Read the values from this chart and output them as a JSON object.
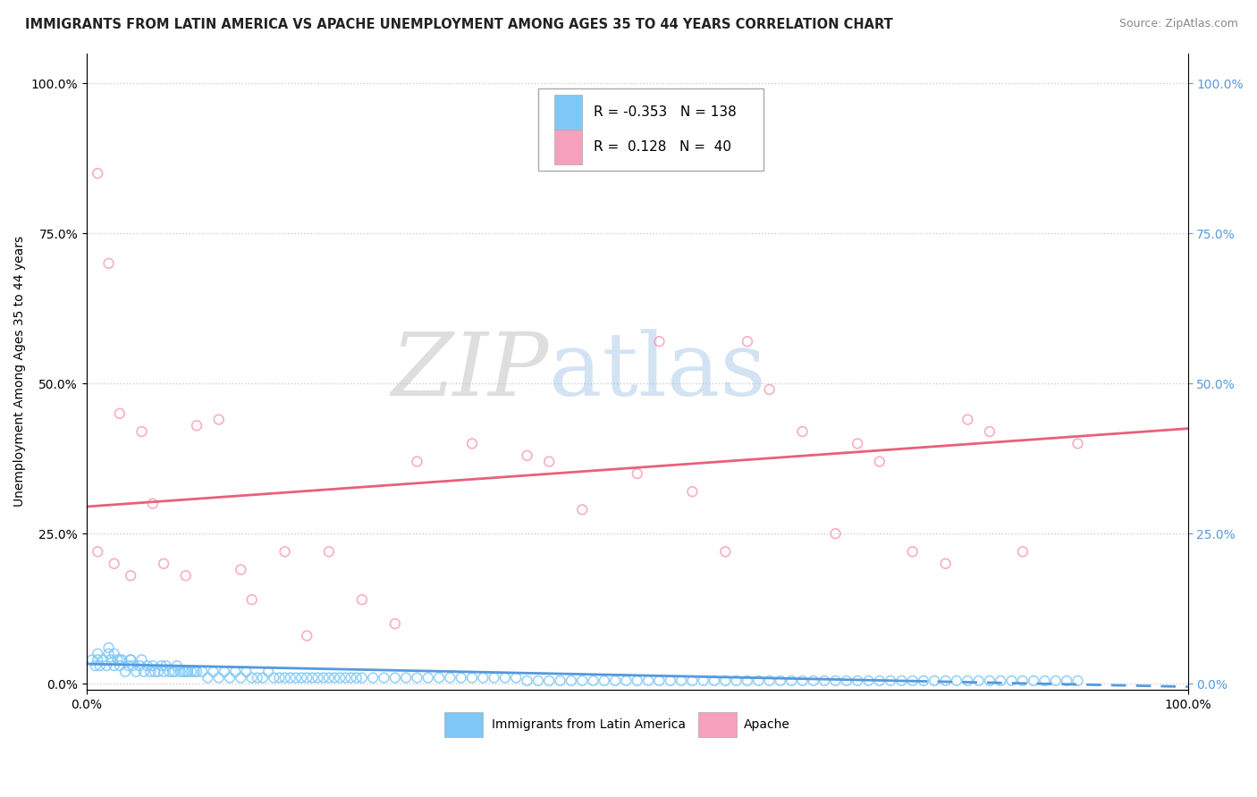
{
  "title": "IMMIGRANTS FROM LATIN AMERICA VS APACHE UNEMPLOYMENT AMONG AGES 35 TO 44 YEARS CORRELATION CHART",
  "source": "Source: ZipAtlas.com",
  "ylabel": "Unemployment Among Ages 35 to 44 years",
  "xlim": [
    0.0,
    1.0
  ],
  "ylim": [
    -0.01,
    1.05
  ],
  "ytick_values": [
    0.0,
    0.25,
    0.5,
    0.75,
    1.0
  ],
  "ytick_labels_left": [
    "0.0%",
    "25.0%",
    "50.0%",
    "75.0%",
    "100.0%"
  ],
  "ytick_labels_right": [
    "0.0%",
    "25.0%",
    "50.0%",
    "75.0%",
    "100.0%"
  ],
  "xtick_positions": [
    0.0,
    1.0
  ],
  "xtick_labels": [
    "0.0%",
    "100.0%"
  ],
  "watermark_zip": "ZIP",
  "watermark_atlas": "atlas",
  "legend_R1": "-0.353",
  "legend_N1": "138",
  "legend_R2": "0.128",
  "legend_N2": "40",
  "blue_color": "#7ec8f7",
  "pink_color": "#f5a0bc",
  "blue_line_color": "#5599dd",
  "pink_line_color": "#e8607a",
  "right_axis_color": "#5599dd",
  "blue_line_y0": 0.033,
  "blue_line_y1": -0.005,
  "pink_line_y0": 0.295,
  "pink_line_y1": 0.425,
  "blue_scatter_x": [
    0.005,
    0.008,
    0.01,
    0.012,
    0.015,
    0.018,
    0.02,
    0.022,
    0.025,
    0.028,
    0.03,
    0.032,
    0.035,
    0.038,
    0.04,
    0.042,
    0.045,
    0.048,
    0.05,
    0.052,
    0.055,
    0.058,
    0.06,
    0.062,
    0.065,
    0.068,
    0.07,
    0.072,
    0.075,
    0.078,
    0.08,
    0.082,
    0.085,
    0.088,
    0.09,
    0.092,
    0.095,
    0.098,
    0.1,
    0.105,
    0.11,
    0.115,
    0.12,
    0.125,
    0.13,
    0.135,
    0.14,
    0.145,
    0.15,
    0.155,
    0.16,
    0.165,
    0.17,
    0.175,
    0.18,
    0.185,
    0.19,
    0.195,
    0.2,
    0.205,
    0.21,
    0.215,
    0.22,
    0.225,
    0.23,
    0.235,
    0.24,
    0.245,
    0.25,
    0.26,
    0.27,
    0.28,
    0.29,
    0.3,
    0.31,
    0.32,
    0.33,
    0.34,
    0.35,
    0.36,
    0.37,
    0.38,
    0.39,
    0.4,
    0.41,
    0.42,
    0.43,
    0.44,
    0.45,
    0.46,
    0.47,
    0.48,
    0.49,
    0.5,
    0.51,
    0.52,
    0.53,
    0.54,
    0.55,
    0.56,
    0.57,
    0.58,
    0.59,
    0.6,
    0.61,
    0.62,
    0.63,
    0.64,
    0.65,
    0.66,
    0.67,
    0.68,
    0.69,
    0.7,
    0.71,
    0.72,
    0.73,
    0.74,
    0.75,
    0.76,
    0.77,
    0.78,
    0.79,
    0.8,
    0.81,
    0.82,
    0.83,
    0.84,
    0.85,
    0.86,
    0.87,
    0.88,
    0.89,
    0.9,
    0.01,
    0.02,
    0.025,
    0.03,
    0.04
  ],
  "blue_scatter_y": [
    0.04,
    0.03,
    0.05,
    0.03,
    0.04,
    0.03,
    0.05,
    0.04,
    0.03,
    0.04,
    0.03,
    0.04,
    0.02,
    0.03,
    0.04,
    0.03,
    0.02,
    0.03,
    0.04,
    0.02,
    0.03,
    0.02,
    0.03,
    0.02,
    0.02,
    0.03,
    0.02,
    0.03,
    0.02,
    0.02,
    0.02,
    0.03,
    0.02,
    0.02,
    0.02,
    0.02,
    0.02,
    0.02,
    0.02,
    0.02,
    0.01,
    0.02,
    0.01,
    0.02,
    0.01,
    0.02,
    0.01,
    0.02,
    0.01,
    0.01,
    0.01,
    0.02,
    0.01,
    0.01,
    0.01,
    0.01,
    0.01,
    0.01,
    0.01,
    0.01,
    0.01,
    0.01,
    0.01,
    0.01,
    0.01,
    0.01,
    0.01,
    0.01,
    0.01,
    0.01,
    0.01,
    0.01,
    0.01,
    0.01,
    0.01,
    0.01,
    0.01,
    0.01,
    0.01,
    0.01,
    0.01,
    0.01,
    0.01,
    0.005,
    0.005,
    0.005,
    0.005,
    0.005,
    0.005,
    0.005,
    0.005,
    0.005,
    0.005,
    0.005,
    0.005,
    0.005,
    0.005,
    0.005,
    0.005,
    0.005,
    0.005,
    0.005,
    0.005,
    0.005,
    0.005,
    0.005,
    0.005,
    0.005,
    0.005,
    0.005,
    0.005,
    0.005,
    0.005,
    0.005,
    0.005,
    0.005,
    0.005,
    0.005,
    0.005,
    0.005,
    0.005,
    0.005,
    0.005,
    0.005,
    0.005,
    0.005,
    0.005,
    0.005,
    0.005,
    0.005,
    0.005,
    0.005,
    0.005,
    0.005,
    0.04,
    0.06,
    0.05,
    0.04,
    0.04
  ],
  "pink_scatter_x": [
    0.01,
    0.01,
    0.02,
    0.025,
    0.03,
    0.04,
    0.05,
    0.06,
    0.07,
    0.09,
    0.1,
    0.12,
    0.14,
    0.15,
    0.18,
    0.2,
    0.22,
    0.25,
    0.28,
    0.3,
    0.35,
    0.4,
    0.42,
    0.45,
    0.5,
    0.52,
    0.55,
    0.58,
    0.6,
    0.62,
    0.65,
    0.68,
    0.7,
    0.72,
    0.75,
    0.78,
    0.8,
    0.82,
    0.85,
    0.9
  ],
  "pink_scatter_y": [
    0.22,
    0.85,
    0.7,
    0.2,
    0.45,
    0.18,
    0.42,
    0.3,
    0.2,
    0.18,
    0.43,
    0.44,
    0.19,
    0.14,
    0.22,
    0.08,
    0.22,
    0.14,
    0.1,
    0.37,
    0.4,
    0.38,
    0.37,
    0.29,
    0.35,
    0.57,
    0.32,
    0.22,
    0.57,
    0.49,
    0.42,
    0.25,
    0.4,
    0.37,
    0.22,
    0.2,
    0.44,
    0.42,
    0.22,
    0.4
  ]
}
